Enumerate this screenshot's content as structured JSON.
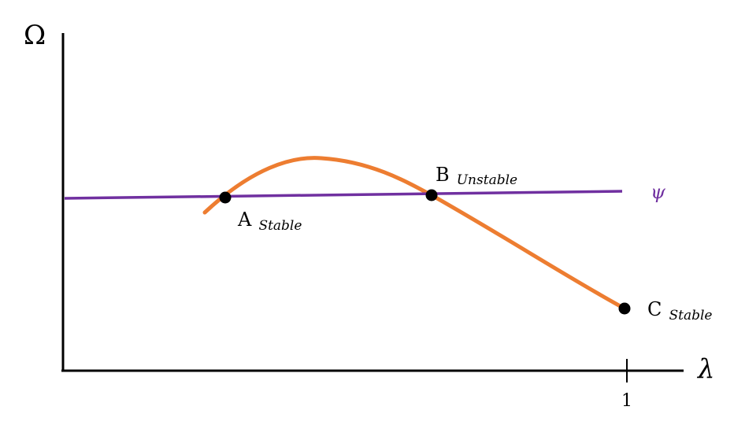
{
  "axes": {
    "y_label": "Ω",
    "x_label": "λ",
    "x_tick_label": "1"
  },
  "lines": {
    "psi_label": "ψ",
    "psi_color": "#7030A0",
    "curve_color": "#ED7D31"
  },
  "points": {
    "a": {
      "letter": "A",
      "sub": "Stable"
    },
    "b": {
      "letter": "B",
      "sub": "Unstable"
    },
    "c": {
      "letter": "C",
      "sub": "Stable"
    }
  }
}
